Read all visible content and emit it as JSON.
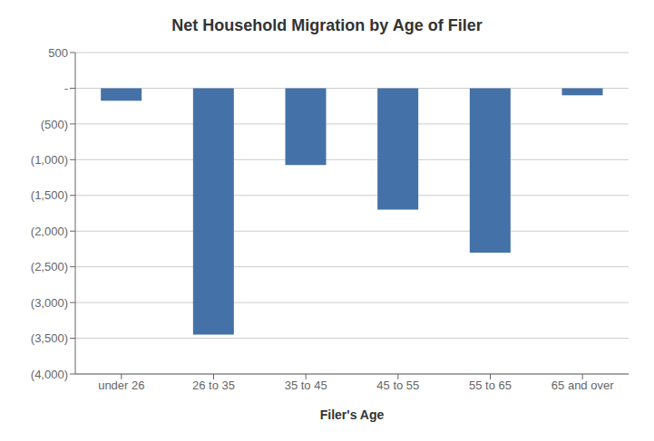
{
  "chart_data": {
    "type": "bar",
    "title": "Net Household Migration by Age of Filer",
    "xlabel": "Filer's Age",
    "categories": [
      "under 26",
      "26 to 35",
      "35 to 45",
      "45 to 55",
      "55 to 65",
      "65 and over"
    ],
    "values": [
      -175,
      -3450,
      -1075,
      -1700,
      -2300,
      -100
    ],
    "color": "#4472a8",
    "ylim": [
      -4000,
      500
    ],
    "yticks": [
      500,
      {
        "value": 0,
        "label": "-"
      },
      {
        "value": -500,
        "label": "(500)"
      },
      {
        "value": -1000,
        "label": "(1,000)"
      },
      {
        "value": -1500,
        "label": "(1,500)"
      },
      {
        "value": -2000,
        "label": "(2,000)"
      },
      {
        "value": -2500,
        "label": "(2,500)"
      },
      {
        "value": -3000,
        "label": "(3,000)"
      },
      {
        "value": -3500,
        "label": "(3,500)"
      },
      {
        "value": -4000,
        "label": "(4,000)"
      }
    ],
    "grid": true
  }
}
